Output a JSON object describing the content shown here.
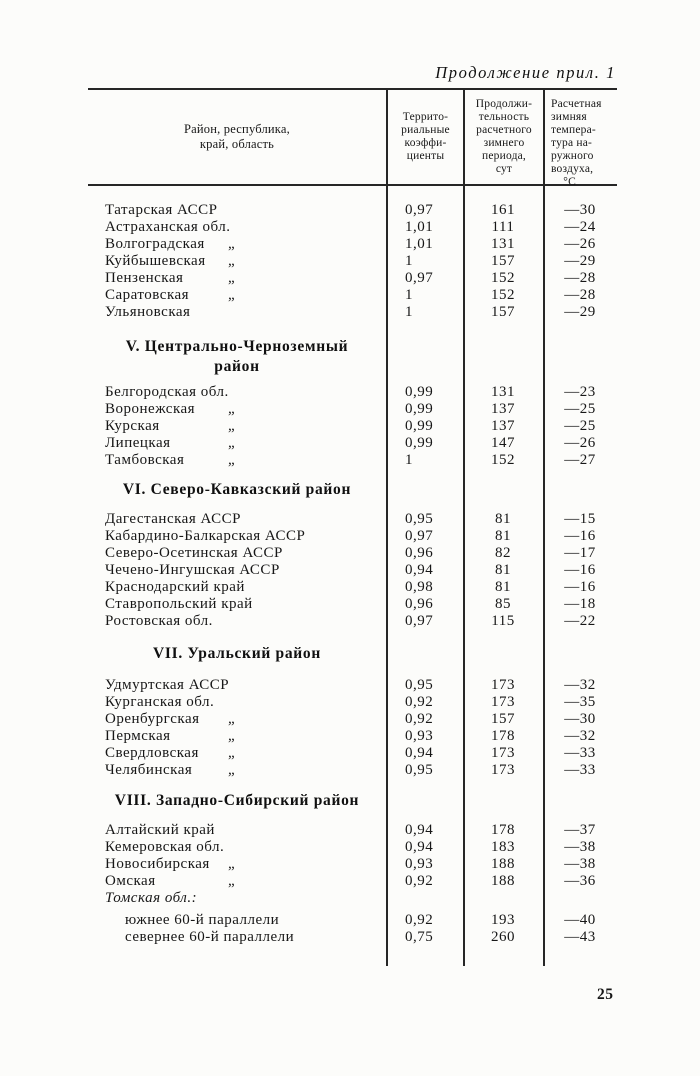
{
  "page": {
    "continuation": "Продолжение прил. 1",
    "number": "25"
  },
  "table": {
    "ditto_mark": "„",
    "header": {
      "col1": "Район, республика,\nкрай, область",
      "col2": "Террито-\nриальные\nкоэффи-\nциенты",
      "col3": "Продолжи-\nтельность\nрасчетного\nзимнего\nпериода,\nсут",
      "col4": "Расчетная\nзимняя\nтемпера-\nтура на-\nружного\nвоздуха,\n    °С"
    },
    "sections": [
      {
        "heading": null,
        "style": "",
        "rows": [
          {
            "name": "Татарская АССР",
            "ditto": false,
            "coef": "0,97",
            "days": "161",
            "temp": "—30"
          },
          {
            "name": "Астраханская обл.",
            "ditto": false,
            "coef": "1,01",
            "days": "111",
            "temp": "—24"
          },
          {
            "name": "Волгоградская",
            "ditto": true,
            "coef": "1,01",
            "days": "131",
            "temp": "—26"
          },
          {
            "name": "Куйбышевская",
            "ditto": true,
            "coef": "1",
            "days": "157",
            "temp": "—29"
          },
          {
            "name": "Пензенская",
            "ditto": true,
            "coef": "0,97",
            "days": "152",
            "temp": "—28"
          },
          {
            "name": "Саратовская",
            "ditto": true,
            "coef": "1",
            "days": "152",
            "temp": "—28"
          },
          {
            "name": "Ульяновская",
            "ditto": false,
            "coef": "1",
            "days": "157",
            "temp": "—29"
          }
        ]
      },
      {
        "heading": "V. Центрально-Черноземный\nрайон",
        "style": "sh-v",
        "rows": [
          {
            "name": "Белгородская обл.",
            "ditto": false,
            "coef": "0,99",
            "days": "131",
            "temp": "—23"
          },
          {
            "name": "Воронежская",
            "ditto": true,
            "coef": "0,99",
            "days": "137",
            "temp": "—25"
          },
          {
            "name": "Курская",
            "ditto": true,
            "coef": "0,99",
            "days": "137",
            "temp": "—25"
          },
          {
            "name": "Липецкая",
            "ditto": true,
            "coef": "0,99",
            "days": "147",
            "temp": "—26"
          },
          {
            "name": "Тамбовская",
            "ditto": true,
            "coef": "1",
            "days": "152",
            "temp": "—27"
          }
        ]
      },
      {
        "heading": "VI. Северо-Кавказский район",
        "style": "sh-vi",
        "rows": [
          {
            "name": "Дагестанская АССР",
            "ditto": false,
            "coef": "0,95",
            "days": "81",
            "temp": "—15"
          },
          {
            "name": "Кабардино-Балкарская АССР",
            "ditto": false,
            "coef": "0,97",
            "days": "81",
            "temp": "—16"
          },
          {
            "name": "Северо-Осетинская АССР",
            "ditto": false,
            "coef": "0,96",
            "days": "82",
            "temp": "—17"
          },
          {
            "name": "Чечено-Ингушская АССР",
            "ditto": false,
            "coef": "0,94",
            "days": "81",
            "temp": "—16"
          },
          {
            "name": "Краснодарский край",
            "ditto": false,
            "coef": "0,98",
            "days": "81",
            "temp": "—16"
          },
          {
            "name": "Ставропольский край",
            "ditto": false,
            "coef": "0,96",
            "days": "85",
            "temp": "—18"
          },
          {
            "name": "Ростовская обл.",
            "ditto": false,
            "coef": "0,97",
            "days": "115",
            "temp": "—22"
          }
        ]
      },
      {
        "heading": "VII. Уральский район",
        "style": "sh-vii",
        "rows": [
          {
            "name": "Удмуртская АССР",
            "ditto": false,
            "coef": "0,95",
            "days": "173",
            "temp": "—32"
          },
          {
            "name": "Курганская обл.",
            "ditto": false,
            "coef": "0,92",
            "days": "173",
            "temp": "—35"
          },
          {
            "name": "Оренбургская",
            "ditto": true,
            "coef": "0,92",
            "days": "157",
            "temp": "—30"
          },
          {
            "name": "Пермская",
            "ditto": true,
            "coef": "0,93",
            "days": "178",
            "temp": "—32"
          },
          {
            "name": "Свердловская",
            "ditto": true,
            "coef": "0,94",
            "days": "173",
            "temp": "—33"
          },
          {
            "name": "Челябинская",
            "ditto": true,
            "coef": "0,95",
            "days": "173",
            "temp": "—33"
          }
        ]
      },
      {
        "heading": "VIII. Западно-Сибирский район",
        "style": "sh-viii",
        "rows": [
          {
            "name": "Алтайский край",
            "ditto": false,
            "coef": "0,94",
            "days": "178",
            "temp": "—37"
          },
          {
            "name": "Кемеровская обл.",
            "ditto": false,
            "coef": "0,94",
            "days": "183",
            "temp": "—38"
          },
          {
            "name": "Новосибирская",
            "ditto": true,
            "coef": "0,93",
            "days": "188",
            "temp": "—38"
          },
          {
            "name": "Омская",
            "ditto": true,
            "coef": "0,92",
            "days": "188",
            "temp": "—36"
          },
          {
            "name": "Томская обл.:",
            "ditto": false,
            "italic": true,
            "coef": "",
            "days": "",
            "temp": ""
          },
          {
            "name": "южнее 60-й параллели",
            "ditto": false,
            "indent": true,
            "gap": true,
            "coef": "0,92",
            "days": "193",
            "temp": "—40"
          },
          {
            "name": "севернее 60-й параллели",
            "ditto": false,
            "indent": true,
            "coef": "0,75",
            "days": "260",
            "temp": "—43"
          }
        ]
      }
    ]
  }
}
